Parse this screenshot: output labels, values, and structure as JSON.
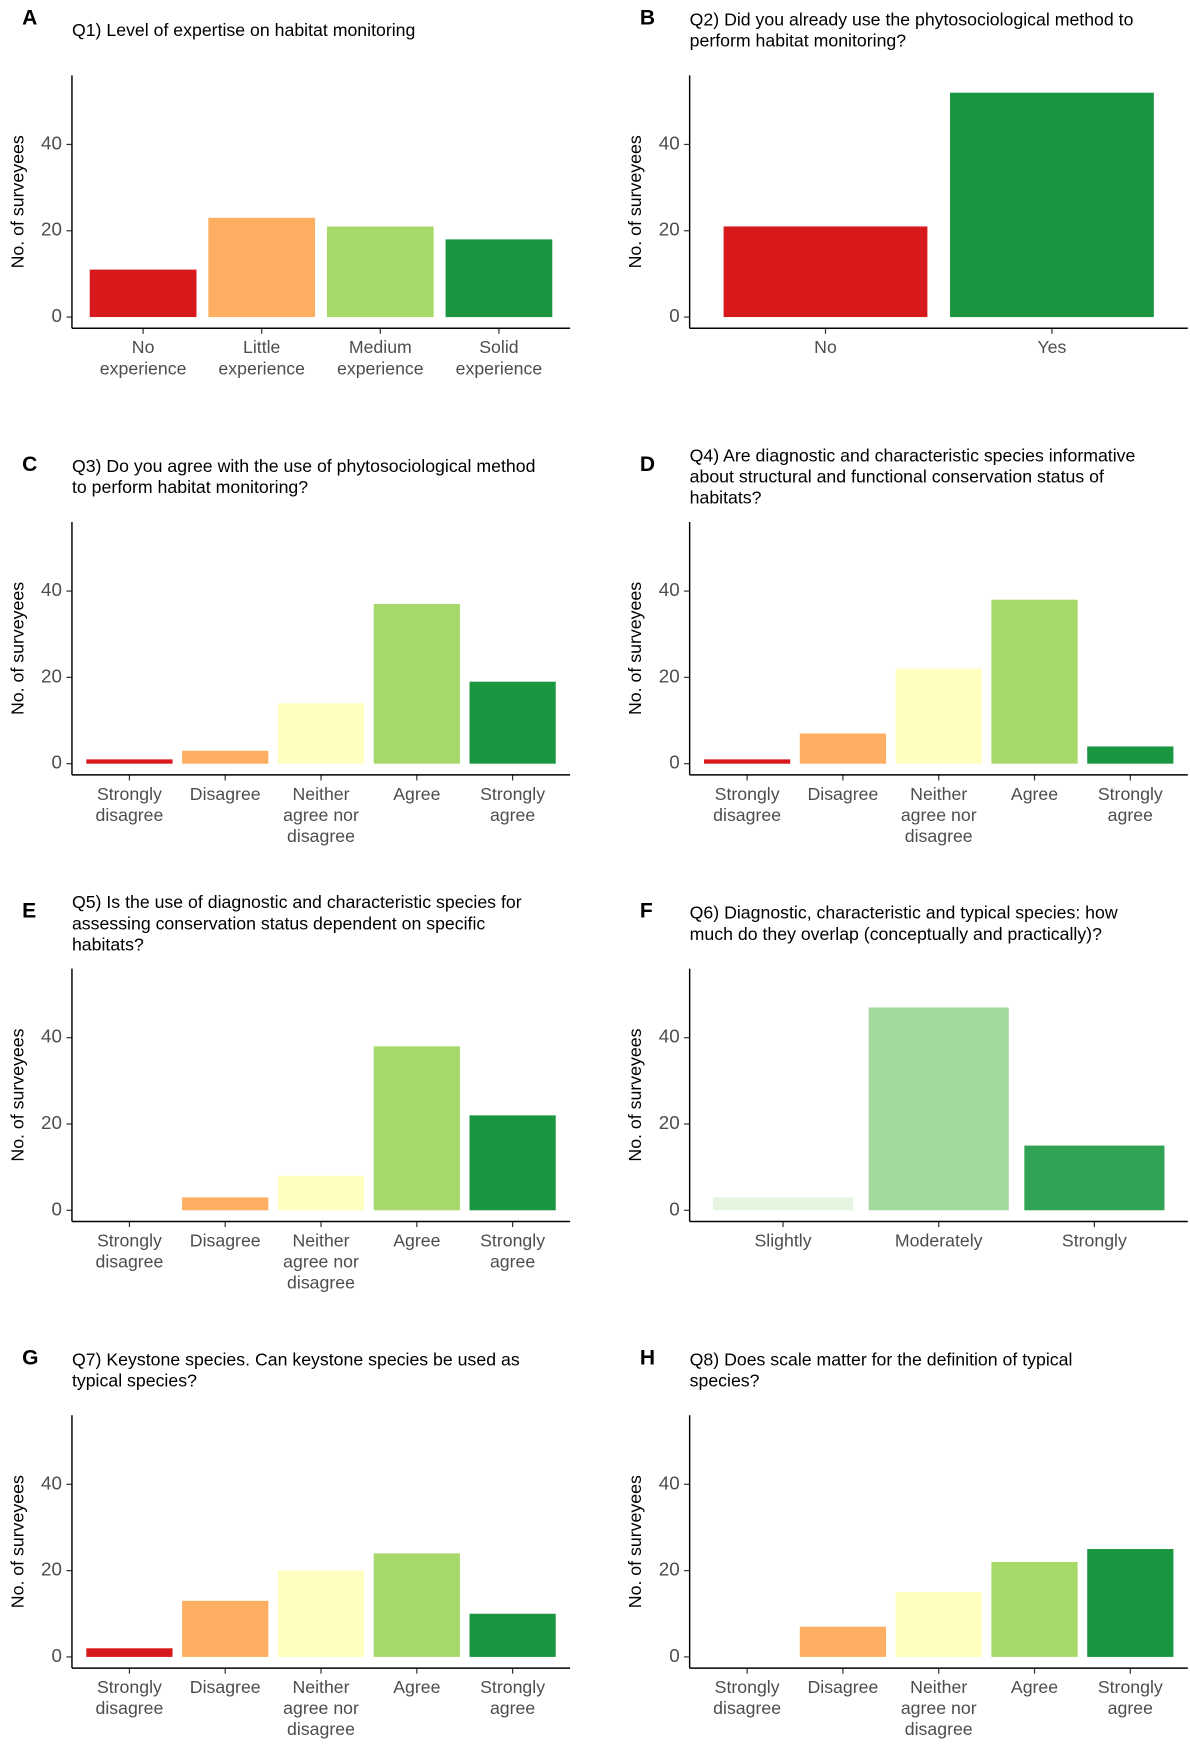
{
  "chart_data": [
    {
      "type": "bar",
      "panel": "A",
      "title": "Q1) Level of expertise on habitat monitoring",
      "ylabel": "No. of surveyees",
      "categories": [
        "No\nexperience",
        "Little\nexperience",
        "Medium\nexperience",
        "Solid\nexperience"
      ],
      "values": [
        11,
        23,
        21,
        18
      ],
      "colors": [
        "#d7191c",
        "#fdae61",
        "#a6d96a",
        "#1a9641"
      ],
      "ylim": [
        -2.6,
        56
      ],
      "yticks": [
        0,
        20,
        40
      ]
    },
    {
      "type": "bar",
      "panel": "B",
      "title": "Q2) Did you already use the phytosociological method to\nperform habitat monitoring?",
      "ylabel": "No. of surveyees",
      "categories": [
        "No",
        "Yes"
      ],
      "values": [
        21,
        52
      ],
      "colors": [
        "#d7191c",
        "#1a9641"
      ],
      "ylim": [
        -2.6,
        56
      ],
      "yticks": [
        0,
        20,
        40
      ]
    },
    {
      "type": "bar",
      "panel": "C",
      "title": "Q3) Do you agree with the use of phytosociological method\nto perform habitat monitoring?",
      "ylabel": "No. of surveyees",
      "categories": [
        "Strongly\ndisagree",
        "Disagree",
        "Neither\nagree nor\ndisagree",
        "Agree",
        "Strongly\nagree"
      ],
      "values": [
        1,
        3,
        14,
        37,
        19
      ],
      "colors": [
        "#d7191c",
        "#fdae61",
        "#ffffbf",
        "#a6d96a",
        "#1a9641"
      ],
      "ylim": [
        -2.6,
        56
      ],
      "yticks": [
        0,
        20,
        40
      ]
    },
    {
      "type": "bar",
      "panel": "D",
      "title": "Q4) Are diagnostic and characteristic species informative\nabout structural and functional conservation status of\nhabitats?",
      "ylabel": "No. of surveyees",
      "categories": [
        "Strongly\ndisagree",
        "Disagree",
        "Neither\nagree nor\ndisagree",
        "Agree",
        "Strongly\nagree"
      ],
      "values": [
        1,
        7,
        22,
        38,
        4
      ],
      "colors": [
        "#d7191c",
        "#fdae61",
        "#ffffbf",
        "#a6d96a",
        "#1a9641"
      ],
      "ylim": [
        -2.6,
        56
      ],
      "yticks": [
        0,
        20,
        40
      ]
    },
    {
      "type": "bar",
      "panel": "E",
      "title": "Q5) Is the use of diagnostic and characteristic species for\nassessing conservation status dependent on specific\nhabitats?",
      "ylabel": "No. of surveyees",
      "categories": [
        "Strongly\ndisagree",
        "Disagree",
        "Neither\nagree nor\ndisagree",
        "Agree",
        "Strongly\nagree"
      ],
      "values": [
        0,
        3,
        8,
        38,
        22
      ],
      "colors": [
        "#d7191c",
        "#fdae61",
        "#ffffbf",
        "#a6d96a",
        "#1a9641"
      ],
      "ylim": [
        -2.6,
        56
      ],
      "yticks": [
        0,
        20,
        40
      ]
    },
    {
      "type": "bar",
      "panel": "F",
      "title": "Q6) Diagnostic, characteristic and typical species: how\nmuch do they overlap (conceptually and practically)?",
      "ylabel": "No. of surveyees",
      "categories": [
        "Slightly",
        "Moderately",
        "Strongly"
      ],
      "values": [
        3,
        47,
        15
      ],
      "colors": [
        "#e5f5e0",
        "#a1d99b",
        "#31a354"
      ],
      "ylim": [
        -2.6,
        56
      ],
      "yticks": [
        0,
        20,
        40
      ]
    },
    {
      "type": "bar",
      "panel": "G",
      "title": "Q7) Keystone species. Can keystone species be used as\ntypical species?",
      "ylabel": "No. of surveyees",
      "categories": [
        "Strongly\ndisagree",
        "Disagree",
        "Neither\nagree nor\ndisagree",
        "Agree",
        "Strongly\nagree"
      ],
      "values": [
        2,
        13,
        20,
        24,
        10
      ],
      "colors": [
        "#d7191c",
        "#fdae61",
        "#ffffbf",
        "#a6d96a",
        "#1a9641"
      ],
      "ylim": [
        -2.6,
        56
      ],
      "yticks": [
        0,
        20,
        40
      ]
    },
    {
      "type": "bar",
      "panel": "H",
      "title": "Q8) Does scale matter for the definition of typical\nspecies?",
      "ylabel": "No. of surveyees",
      "categories": [
        "Strongly\ndisagree",
        "Disagree",
        "Neither\nagree nor\ndisagree",
        "Agree",
        "Strongly\nagree"
      ],
      "values": [
        0,
        7,
        15,
        22,
        25
      ],
      "colors": [
        "#d7191c",
        "#fdae61",
        "#ffffbf",
        "#a6d96a",
        "#1a9641"
      ],
      "ylim": [
        -2.6,
        56
      ],
      "yticks": [
        0,
        20,
        40
      ]
    }
  ]
}
